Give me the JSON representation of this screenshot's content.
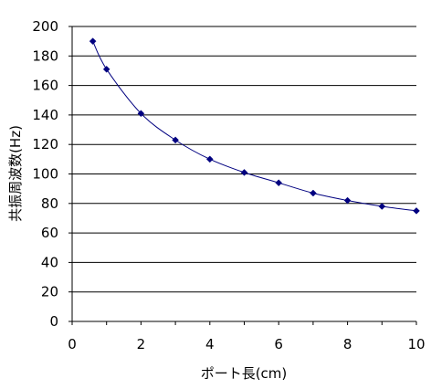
{
  "chart_data": {
    "type": "line",
    "xlabel": "ポート長(cm)",
    "ylabel": "共振周波数(Hz)",
    "xlim": [
      0,
      10
    ],
    "ylim": [
      0,
      200
    ],
    "xticks": [
      0,
      2,
      4,
      6,
      8,
      10
    ],
    "yticks": [
      0,
      20,
      40,
      60,
      80,
      100,
      120,
      140,
      160,
      180,
      200
    ],
    "grid": "horizontal",
    "legend": "none",
    "series": [
      {
        "marker": "diamond",
        "color": "#000080",
        "x": [
          0.6,
          1,
          2,
          3,
          4,
          5,
          6,
          7,
          8,
          9,
          10
        ],
        "y": [
          190,
          171,
          141,
          123,
          110,
          101,
          94,
          87,
          82,
          78,
          75
        ]
      }
    ]
  }
}
